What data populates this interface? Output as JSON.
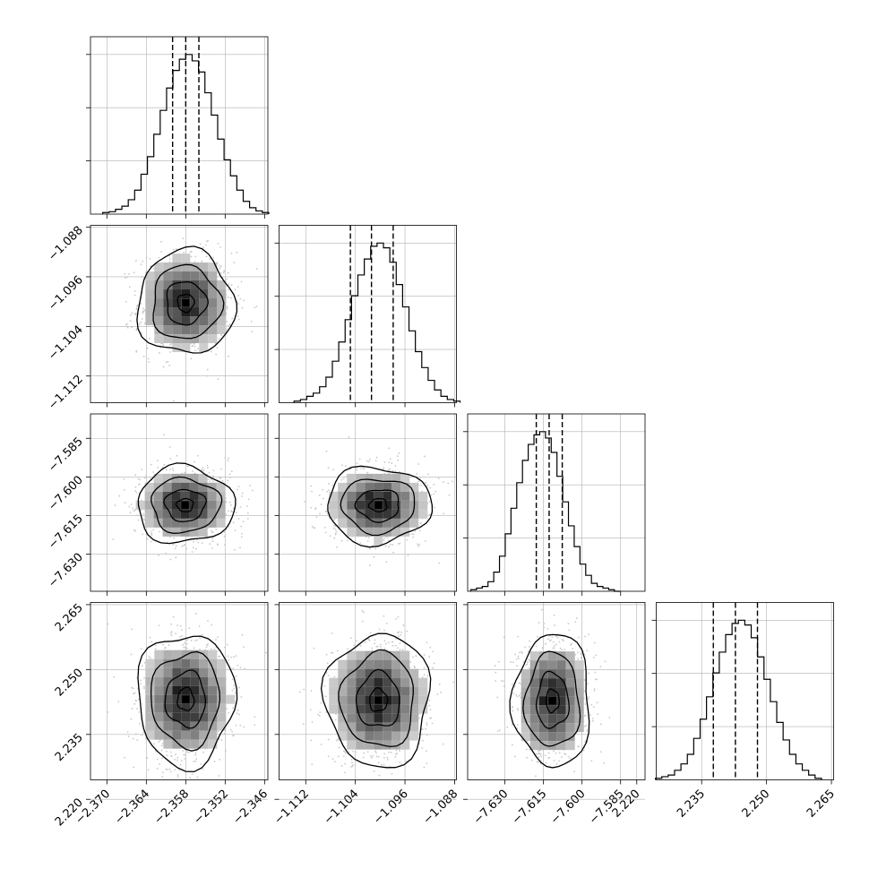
{
  "chart_data": {
    "type": "corner",
    "grid": true,
    "colors": {
      "line": "#000000",
      "grid": "#b0b0b0",
      "scatter": "#c8c8c8"
    },
    "params": [
      {
        "index": 0,
        "mean": -2.358,
        "quantiles": [
          -2.36,
          -2.358,
          -2.356
        ],
        "range": [
          -2.3725,
          -2.3455
        ],
        "ticks": [
          -2.37,
          -2.364,
          -2.358,
          -2.352,
          -2.346
        ],
        "tick_labels": [
          "−2.370",
          "−2.364",
          "−2.358",
          "−2.352",
          "−2.346"
        ],
        "hist": [
          0.01,
          0.015,
          0.03,
          0.05,
          0.09,
          0.15,
          0.25,
          0.36,
          0.5,
          0.65,
          0.79,
          0.9,
          0.97,
          1.0,
          0.96,
          0.89,
          0.76,
          0.62,
          0.47,
          0.34,
          0.24,
          0.15,
          0.08,
          0.04,
          0.02,
          0.01
        ]
      },
      {
        "index": 1,
        "mean": -1.1005,
        "quantiles": [
          -1.1048,
          -1.1014,
          -1.0979
        ],
        "range": [
          -1.1163,
          -1.0877
        ],
        "ticks": [
          -1.112,
          -1.104,
          -1.096,
          -1.088
        ],
        "tick_labels": [
          "−1.112",
          "−1.104",
          "−1.096",
          "−1.088"
        ],
        "hist": [
          0.01,
          0.02,
          0.04,
          0.06,
          0.1,
          0.16,
          0.26,
          0.38,
          0.52,
          0.67,
          0.8,
          0.9,
          0.98,
          1.0,
          0.97,
          0.88,
          0.74,
          0.6,
          0.45,
          0.32,
          0.22,
          0.14,
          0.08,
          0.04,
          0.02,
          0.01
        ]
      },
      {
        "index": 2,
        "mean": -7.611,
        "quantiles": [
          -7.6178,
          -7.6128,
          -7.6077
        ],
        "range": [
          -7.6445,
          -7.5755
        ],
        "ticks": [
          -7.63,
          -7.615,
          -7.6,
          -7.585
        ],
        "tick_labels": [
          "−7.630",
          "−7.615",
          "−7.600",
          "−7.585"
        ],
        "hist": [
          0.01,
          0.02,
          0.03,
          0.06,
          0.12,
          0.22,
          0.36,
          0.52,
          0.68,
          0.82,
          0.92,
          0.98,
          1.0,
          0.96,
          0.87,
          0.72,
          0.56,
          0.41,
          0.28,
          0.17,
          0.1,
          0.05,
          0.03,
          0.02,
          0.01,
          0.0
        ]
      },
      {
        "index": 3,
        "mean": 2.2435,
        "quantiles": [
          2.2377,
          2.2428,
          2.2479
        ],
        "range": [
          2.2245,
          2.2655
        ],
        "ticks": [
          2.22,
          2.235,
          2.25,
          2.265
        ],
        "tick_labels": [
          "2.220",
          "2.235",
          "2.250",
          "2.265"
        ],
        "hist": [
          0.01,
          0.02,
          0.03,
          0.06,
          0.1,
          0.16,
          0.26,
          0.38,
          0.52,
          0.67,
          0.8,
          0.91,
          0.98,
          1.0,
          0.97,
          0.89,
          0.77,
          0.63,
          0.49,
          0.36,
          0.25,
          0.16,
          0.1,
          0.06,
          0.03,
          0.01
        ]
      }
    ],
    "pairs": [
      {
        "row": 1,
        "col": 0,
        "scatter_sd": [
          0.0036,
          0.0041
        ],
        "center_offset": [
          0.0,
          0.0003
        ]
      },
      {
        "row": 2,
        "col": 0,
        "scatter_sd": [
          0.0036,
          0.0073
        ],
        "center_offset": [
          -0.0001,
          0.0
        ]
      },
      {
        "row": 2,
        "col": 1,
        "scatter_sd": [
          0.0041,
          0.0073
        ],
        "center_offset": [
          0.0002,
          0.0
        ]
      },
      {
        "row": 3,
        "col": 0,
        "scatter_sd": [
          0.0036,
          0.0075
        ],
        "center_offset": [
          0.0,
          -0.0004
        ]
      },
      {
        "row": 3,
        "col": 1,
        "scatter_sd": [
          0.0041,
          0.0075
        ],
        "center_offset": [
          0.0002,
          -0.0006
        ]
      },
      {
        "row": 3,
        "col": 2,
        "scatter_sd": [
          0.0073,
          0.0075
        ],
        "center_offset": [
          -0.0005,
          -0.0007
        ]
      }
    ]
  }
}
